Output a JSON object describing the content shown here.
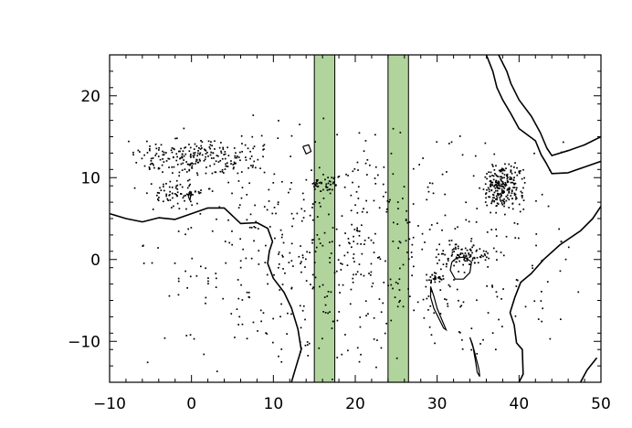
{
  "chart_data": {
    "type": "scatter",
    "title": "",
    "xlabel": "",
    "ylabel": "",
    "xlim": [
      -10,
      50
    ],
    "ylim": [
      -15,
      25
    ],
    "x_ticks": [
      -10,
      0,
      10,
      20,
      30,
      40,
      50
    ],
    "y_ticks": [
      -10,
      0,
      10,
      20
    ],
    "x_tick_labels": [
      "−10",
      "0",
      "10",
      "20",
      "30",
      "40",
      "50"
    ],
    "y_tick_labels": [
      "−10",
      "0",
      "10",
      "20"
    ],
    "grid": false,
    "legend": "none",
    "shaded_bands": [
      {
        "x_range": [
          15,
          17.5
        ],
        "color": "#b1d49c"
      },
      {
        "x_range": [
          24,
          26.5
        ],
        "color": "#b1d49c"
      }
    ],
    "background_map": "Africa coastline (lon/lat)",
    "point_color": "#000000",
    "point_clusters": [
      {
        "lon_range": [
          -9,
          10
        ],
        "lat_range": [
          10,
          15
        ],
        "count": 230
      },
      {
        "lon_range": [
          -6,
          3
        ],
        "lat_range": [
          6,
          10
        ],
        "count": 70
      },
      {
        "lon_range": [
          14.5,
          18
        ],
        "lat_range": [
          8,
          10.5
        ],
        "count": 40
      },
      {
        "lon_range": [
          35,
          41
        ],
        "lat_range": [
          6,
          12
        ],
        "count": 230
      },
      {
        "lon_range": [
          29,
          38
        ],
        "lat_range": [
          -1,
          2
        ],
        "count": 90
      },
      {
        "lon_range": [
          28.5,
          31
        ],
        "lat_range": [
          -3,
          -1.5
        ],
        "count": 30
      },
      {
        "lon_range": [
          -8,
          48
        ],
        "lat_range": [
          -15,
          18
        ],
        "count": 620
      }
    ]
  }
}
